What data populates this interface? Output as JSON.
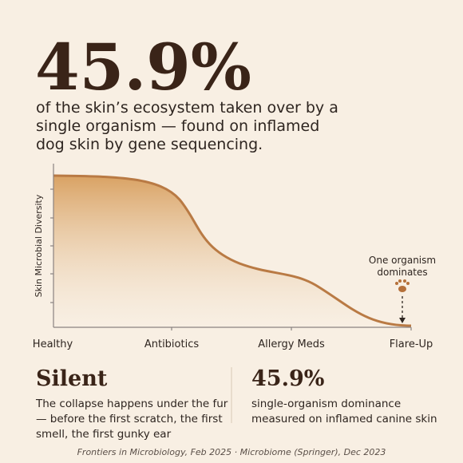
{
  "header": {
    "stat": "45.9%",
    "description": [
      "of the skin’s ecosystem taken over by a",
      "single organism — found on inflamed",
      "dog skin by gene sequencing."
    ]
  },
  "chart": {
    "y_axis_label": "Skin Microbial Diversity",
    "x_labels": [
      "Healthy",
      "Antibiotics",
      "Allergy Meds",
      "Flare-Up"
    ],
    "annotation": [
      "One organism",
      "dominates"
    ]
  },
  "panels": [
    {
      "title": "Silent",
      "text": [
        "The collapse happens under the fur",
        "— before the first scratch, the first",
        "smell, the first gunky ear"
      ]
    },
    {
      "title": "45.9%",
      "text": [
        "single-organism dominance",
        "measured on inflamed canine skin"
      ]
    }
  ],
  "source": "Frontiers in Microbiology, Feb 2025 · Microbiome (Springer), Dec 2023"
}
